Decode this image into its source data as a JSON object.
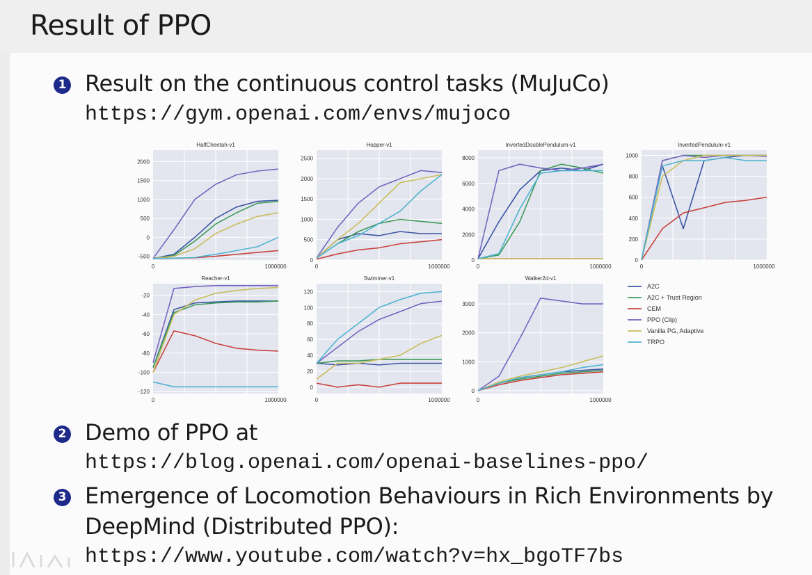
{
  "slide": {
    "title": "Result of PPO",
    "items": [
      {
        "num": "1",
        "text": "Result on the continuous control tasks (MuJuCo)",
        "url": "https://gym.openai.com/envs/mujoco"
      },
      {
        "num": "2",
        "text": "Demo of PPO at",
        "url": "https://blog.openai.com/openai-baselines-ppo/"
      },
      {
        "num": "3",
        "text": "Emergence of Locomotion Behaviours in Rich Environments by",
        "text2": "DeepMind (Distributed PPO):",
        "url": "https://www.youtube.com/watch?v=hx_bgoTF7bs"
      }
    ]
  },
  "chart_data": {
    "type": "line",
    "x_ticks": [
      "0",
      "1000000"
    ],
    "legend": [
      {
        "name": "A2C",
        "color": "#3a54a4"
      },
      {
        "name": "A2C + Trust Region",
        "color": "#3e9a5a"
      },
      {
        "name": "CEM",
        "color": "#c8443f"
      },
      {
        "name": "PPO (Clip)",
        "color": "#7466c0"
      },
      {
        "name": "Vanilla PG, Adaptive",
        "color": "#c8bd5a"
      },
      {
        "name": "TRPO",
        "color": "#4db3cf"
      }
    ],
    "panels": [
      {
        "title": "HalfCheetah-v1",
        "ylim": [
          -600,
          2300
        ],
        "yticks": [
          "2000",
          "1500",
          "1000",
          "500",
          "0",
          "-500"
        ],
        "ytick_values": [
          2000,
          1500,
          1000,
          500,
          0,
          -500
        ],
        "series": {
          "A2C": [
            -560,
            -450,
            0,
            500,
            800,
            950,
            980
          ],
          "A2C + Trust Region": [
            -560,
            -480,
            -100,
            350,
            650,
            900,
            950
          ],
          "CEM": [
            -560,
            -550,
            -540,
            -500,
            -450,
            -400,
            -350
          ],
          "PPO (Clip)": [
            -560,
            200,
            1000,
            1400,
            1650,
            1750,
            1800
          ],
          "Vanilla PG, Adaptive": [
            -560,
            -500,
            -300,
            100,
            350,
            550,
            650
          ],
          "TRPO": [
            -560,
            -550,
            -530,
            -450,
            -350,
            -250,
            0
          ]
        }
      },
      {
        "title": "Hopper-v1",
        "ylim": [
          0,
          2700
        ],
        "yticks": [
          "2500",
          "2000",
          "1500",
          "1000",
          "500",
          "0"
        ],
        "ytick_values": [
          2500,
          2000,
          1500,
          1000,
          500,
          0
        ],
        "series": {
          "A2C": [
            50,
            500,
            650,
            600,
            700,
            650,
            650
          ],
          "A2C + Trust Region": [
            50,
            400,
            700,
            900,
            1000,
            950,
            900
          ],
          "CEM": [
            20,
            150,
            250,
            300,
            400,
            450,
            500
          ],
          "PPO (Clip)": [
            50,
            800,
            1400,
            1800,
            2000,
            2200,
            2150
          ],
          "Vanilla PG, Adaptive": [
            50,
            500,
            900,
            1400,
            1900,
            2000,
            2100
          ],
          "TRPO": [
            50,
            400,
            600,
            900,
            1200,
            1700,
            2100
          ]
        }
      },
      {
        "title": "InvertedDoublePendulum-v1",
        "ylim": [
          0,
          8600
        ],
        "yticks": [
          "8000",
          "6000",
          "4000",
          "2000",
          "0"
        ],
        "ytick_values": [
          8000,
          6000,
          4000,
          2000,
          0
        ],
        "series": {
          "A2C": [
            100,
            3000,
            5500,
            7000,
            7200,
            7000,
            7500
          ],
          "A2C + Trust Region": [
            100,
            400,
            3000,
            7000,
            7500,
            7200,
            6800
          ],
          "CEM": [
            100,
            100,
            100,
            100,
            100,
            100,
            100
          ],
          "PPO (Clip)": [
            100,
            7000,
            7500,
            7200,
            7000,
            7200,
            7500
          ],
          "Vanilla PG, Adaptive": [
            100,
            100,
            100,
            100,
            100,
            100,
            100
          ],
          "TRPO": [
            100,
            500,
            4000,
            6800,
            7000,
            7000,
            7000
          ]
        }
      },
      {
        "title": "InvertedPendulum-v1",
        "ylim": [
          0,
          1050
        ],
        "yticks": [
          "1000",
          "800",
          "600",
          "400",
          "200",
          "0"
        ],
        "ytick_values": [
          1000,
          800,
          600,
          400,
          200,
          0
        ],
        "series": {
          "A2C": [
            0,
            900,
            300,
            950,
            980,
            1000,
            1000
          ],
          "A2C + Trust Region": [
            0,
            950,
            1000,
            1000,
            1000,
            1000,
            1000
          ],
          "CEM": [
            0,
            300,
            450,
            500,
            550,
            570,
            600
          ],
          "PPO (Clip)": [
            0,
            950,
            1000,
            980,
            1000,
            1000,
            990
          ],
          "Vanilla PG, Adaptive": [
            0,
            800,
            950,
            1000,
            1000,
            1000,
            1000
          ],
          "TRPO": [
            0,
            900,
            950,
            950,
            980,
            950,
            950
          ]
        }
      },
      {
        "title": "Reacher-v1",
        "ylim": [
          -122,
          -8
        ],
        "yticks": [
          "-20",
          "-40",
          "-60",
          "-80",
          "-100",
          "-120"
        ],
        "ytick_values": [
          -20,
          -40,
          -60,
          -80,
          -100,
          -120
        ],
        "series": {
          "A2C": [
            -95,
            -35,
            -28,
            -27,
            -26,
            -26,
            -26
          ],
          "A2C + Trust Region": [
            -95,
            -38,
            -30,
            -28,
            -27,
            -27,
            -26
          ],
          "CEM": [
            -100,
            -57,
            -62,
            -70,
            -75,
            -77,
            -78
          ],
          "PPO (Clip)": [
            -90,
            -13,
            -11,
            -10,
            -10,
            -10,
            -10
          ],
          "Vanilla PG, Adaptive": [
            -100,
            -40,
            -25,
            -18,
            -15,
            -13,
            -12
          ],
          "TRPO": [
            -110,
            -115,
            -115,
            -115,
            -115,
            -115,
            -115
          ]
        }
      },
      {
        "title": "Swimmer-v1",
        "ylim": [
          -8,
          130
        ],
        "yticks": [
          "120",
          "100",
          "80",
          "60",
          "40",
          "20",
          "0"
        ],
        "ytick_values": [
          120,
          100,
          80,
          60,
          40,
          20,
          0
        ],
        "series": {
          "A2C": [
            30,
            28,
            30,
            28,
            30,
            30,
            30
          ],
          "A2C + Trust Region": [
            30,
            33,
            33,
            35,
            35,
            35,
            35
          ],
          "CEM": [
            5,
            0,
            3,
            0,
            5,
            5,
            5
          ],
          "PPO (Clip)": [
            30,
            50,
            70,
            85,
            95,
            105,
            108
          ],
          "Vanilla PG, Adaptive": [
            10,
            30,
            30,
            35,
            40,
            55,
            65
          ],
          "TRPO": [
            30,
            60,
            80,
            100,
            110,
            118,
            120
          ]
        }
      },
      {
        "title": "Walker2d-v1",
        "ylim": [
          -100,
          3700
        ],
        "yticks": [
          "3000",
          "2000",
          "1000",
          "0"
        ],
        "ytick_values": [
          3000,
          2000,
          1000,
          0
        ],
        "series": {
          "A2C": [
            0,
            250,
            450,
            550,
            650,
            700,
            750
          ],
          "A2C + Trust Region": [
            0,
            250,
            400,
            500,
            600,
            650,
            700
          ],
          "CEM": [
            0,
            200,
            350,
            450,
            550,
            600,
            650
          ],
          "PPO (Clip)": [
            0,
            500,
            1800,
            3200,
            3100,
            3000,
            3000
          ],
          "Vanilla PG, Adaptive": [
            0,
            300,
            500,
            650,
            800,
            1000,
            1200
          ],
          "TRPO": [
            0,
            250,
            450,
            550,
            650,
            800,
            900
          ]
        }
      }
    ]
  }
}
